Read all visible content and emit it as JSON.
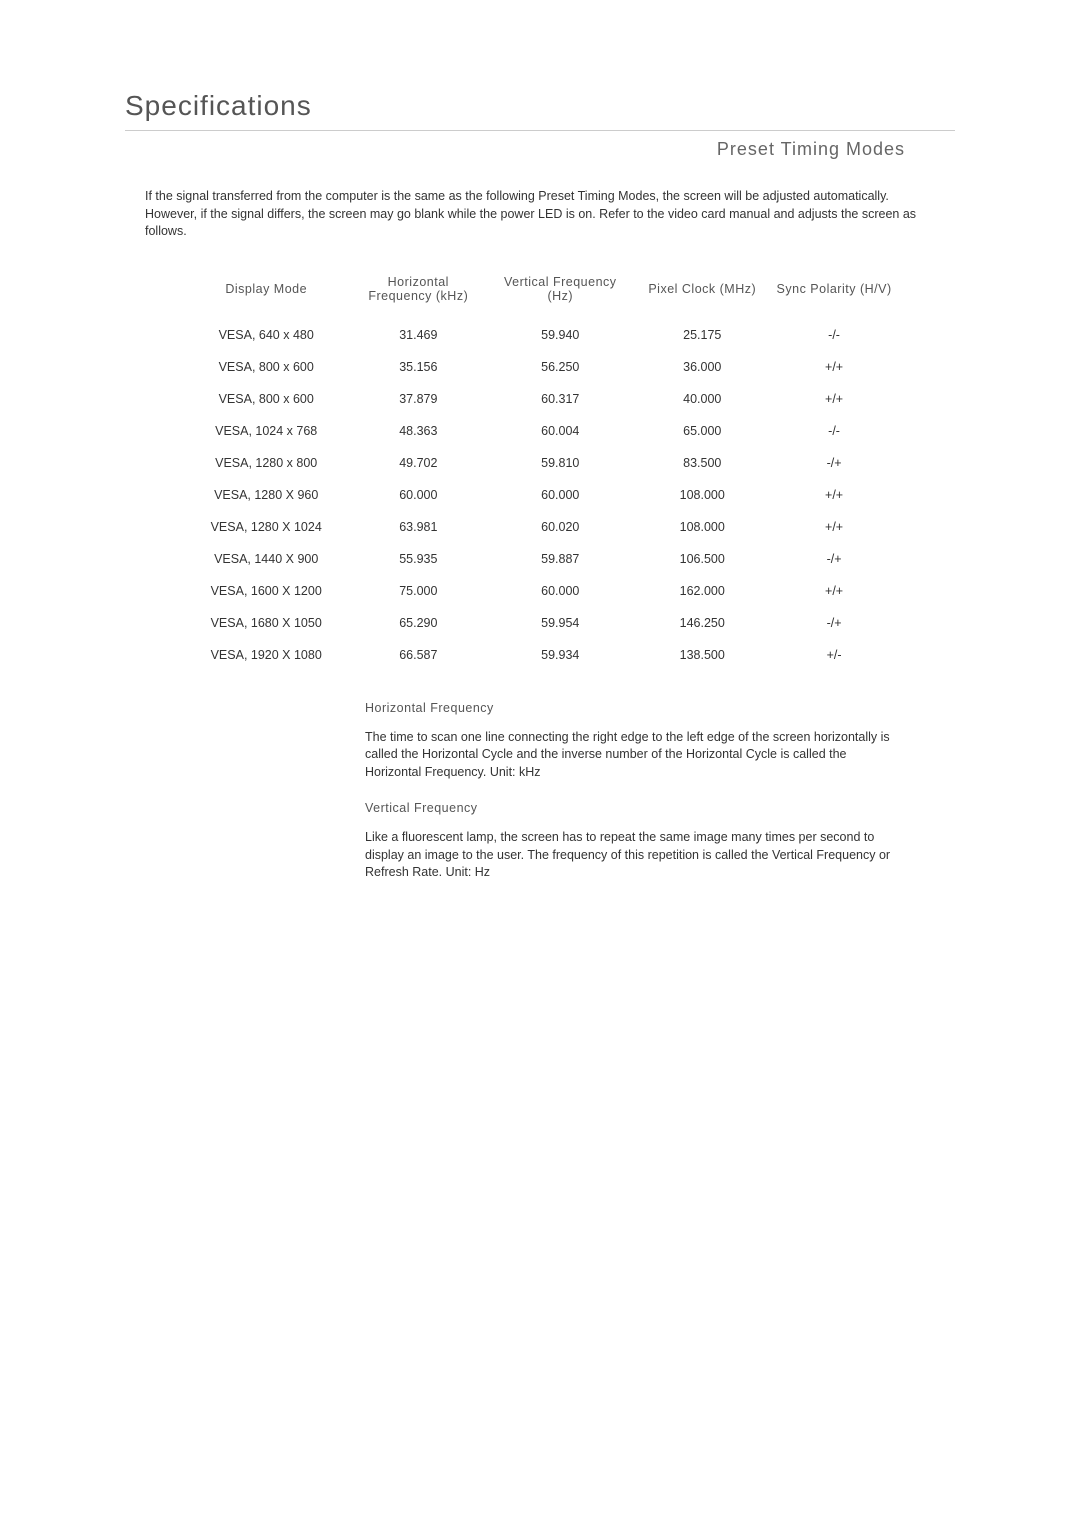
{
  "page": {
    "title": "Specifications",
    "section_title": "Preset Timing Modes",
    "intro": "If the signal transferred from the computer is the same as the following Preset Timing Modes, the screen will be adjusted automatically. However, if the signal differs, the screen may go blank while the power LED is on. Refer to the video card manual and adjusts the screen as follows."
  },
  "table": {
    "columns": [
      "Display Mode",
      "Horizontal Frequency (kHz)",
      "Vertical Frequency (Hz)",
      "Pixel Clock (MHz)",
      "Sync Polarity (H/V)"
    ],
    "rows": [
      {
        "mode": "VESA, 640 x 480",
        "hfreq": "31.469",
        "vfreq": "59.940",
        "pclk": "25.175",
        "sync": "-/-"
      },
      {
        "mode": "VESA, 800 x 600",
        "hfreq": "35.156",
        "vfreq": "56.250",
        "pclk": "36.000",
        "sync": "+/+"
      },
      {
        "mode": "VESA, 800 x 600",
        "hfreq": "37.879",
        "vfreq": "60.317",
        "pclk": "40.000",
        "sync": "+/+"
      },
      {
        "mode": "VESA, 1024 x 768",
        "hfreq": "48.363",
        "vfreq": "60.004",
        "pclk": "65.000",
        "sync": "-/-"
      },
      {
        "mode": "VESA, 1280 x 800",
        "hfreq": "49.702",
        "vfreq": "59.810",
        "pclk": "83.500",
        "sync": "-/+"
      },
      {
        "mode": "VESA, 1280 X 960",
        "hfreq": "60.000",
        "vfreq": "60.000",
        "pclk": "108.000",
        "sync": "+/+"
      },
      {
        "mode": "VESA, 1280 X 1024",
        "hfreq": "63.981",
        "vfreq": "60.020",
        "pclk": "108.000",
        "sync": "+/+"
      },
      {
        "mode": "VESA, 1440 X 900",
        "hfreq": "55.935",
        "vfreq": "59.887",
        "pclk": "106.500",
        "sync": "-/+"
      },
      {
        "mode": "VESA, 1600 X 1200",
        "hfreq": "75.000",
        "vfreq": "60.000",
        "pclk": "162.000",
        "sync": "+/+"
      },
      {
        "mode": "VESA, 1680 X 1050",
        "hfreq": "65.290",
        "vfreq": "59.954",
        "pclk": "146.250",
        "sync": "-/+"
      },
      {
        "mode": "VESA, 1920 X 1080",
        "hfreq": "66.587",
        "vfreq": "59.934",
        "pclk": "138.500",
        "sync": "+/-"
      }
    ]
  },
  "definitions": {
    "hfreq_title": "Horizontal Frequency",
    "hfreq_body": "The time to scan one line connecting the right edge to the left edge of the screen horizontally is called the Horizontal Cycle and the inverse number of the Horizontal Cycle is called the Horizontal Frequency. Unit: kHz",
    "vfreq_title": "Vertical Frequency",
    "vfreq_body": "Like a fluorescent lamp, the screen has to repeat the same image many times per second to display an image to the user. The frequency of this repetition is called the Vertical Frequency or Refresh Rate. Unit: Hz"
  }
}
